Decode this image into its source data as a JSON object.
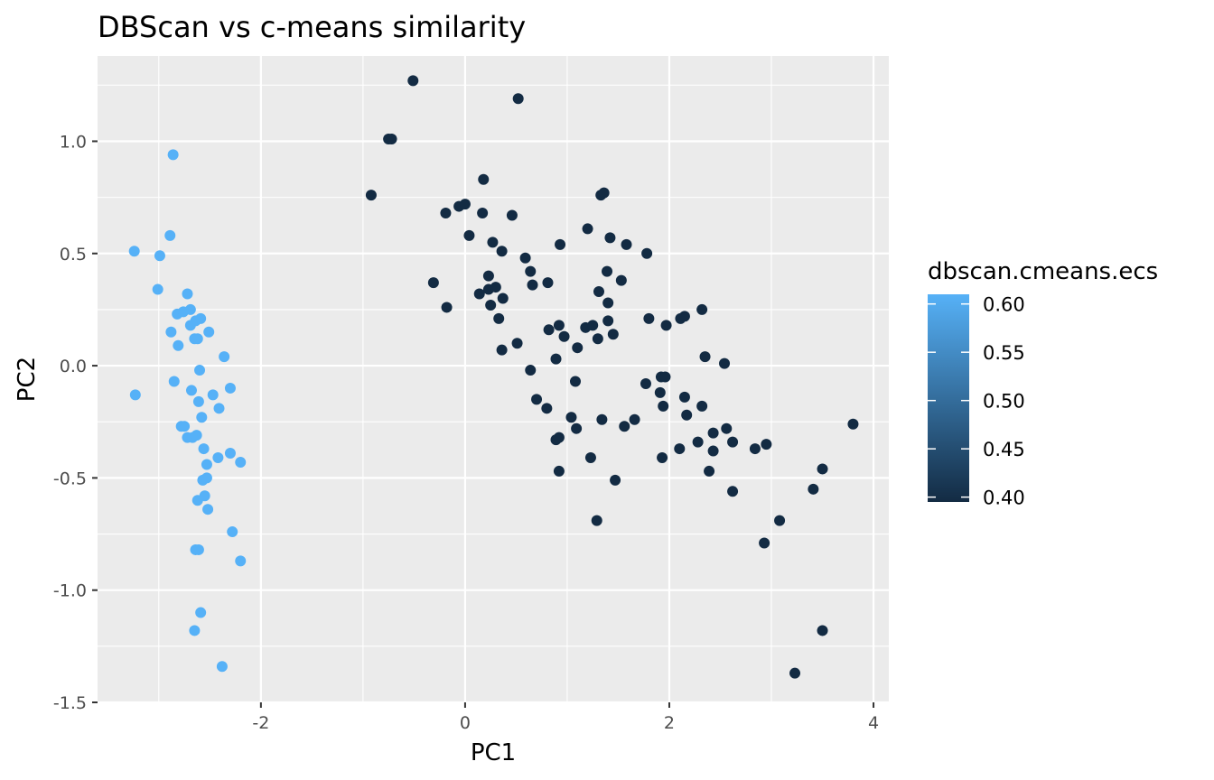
{
  "chart_data": {
    "type": "scatter",
    "title": "DBScan vs c-means similarity",
    "xlabel": "PC1",
    "ylabel": "PC2",
    "xlim": [
      -3.6,
      4.15
    ],
    "ylim": [
      -1.5,
      1.38
    ],
    "xticks": [
      -2,
      0,
      2,
      4
    ],
    "xtick_labels": [
      "-2",
      "0",
      "2",
      "4"
    ],
    "yticks": [
      -1.5,
      -1.0,
      -0.5,
      0.0,
      0.5,
      1.0
    ],
    "ytick_labels": [
      "-1.5",
      "-1.0",
      "-0.5",
      "0.0",
      "0.5",
      "1.0"
    ],
    "grid": true,
    "legend": {
      "title": "dbscan.cmeans.ecs",
      "position": "right",
      "type": "colorbar",
      "range": [
        0.395,
        0.61
      ],
      "ticks": [
        0.4,
        0.45,
        0.5,
        0.55,
        0.6
      ],
      "tick_labels": [
        "0.40",
        "0.45",
        "0.50",
        "0.55",
        "0.60"
      ],
      "color_low": "#132B43",
      "color_high": "#56B1F7"
    },
    "series": [
      {
        "value": 0.6,
        "color": "#56B1F7",
        "points": [
          [
            -3.24,
            0.51
          ],
          [
            -3.23,
            -0.13
          ],
          [
            -2.99,
            0.49
          ],
          [
            -3.01,
            0.34
          ],
          [
            -2.86,
            0.94
          ],
          [
            -2.89,
            0.58
          ],
          [
            -2.85,
            -0.07
          ],
          [
            -2.88,
            0.15
          ],
          [
            -2.82,
            0.23
          ],
          [
            -2.76,
            0.24
          ],
          [
            -2.72,
            0.32
          ],
          [
            -2.69,
            0.25
          ],
          [
            -2.69,
            0.18
          ],
          [
            -2.81,
            0.09
          ],
          [
            -2.65,
            0.12
          ],
          [
            -2.62,
            0.12
          ],
          [
            -2.64,
            0.2
          ],
          [
            -2.59,
            0.21
          ],
          [
            -2.51,
            0.15
          ],
          [
            -2.36,
            0.04
          ],
          [
            -2.6,
            -0.02
          ],
          [
            -2.68,
            -0.11
          ],
          [
            -2.61,
            -0.16
          ],
          [
            -2.47,
            -0.13
          ],
          [
            -2.3,
            -0.1
          ],
          [
            -2.41,
            -0.19
          ],
          [
            -2.58,
            -0.23
          ],
          [
            -2.78,
            -0.27
          ],
          [
            -2.75,
            -0.27
          ],
          [
            -2.72,
            -0.32
          ],
          [
            -2.67,
            -0.32
          ],
          [
            -2.63,
            -0.31
          ],
          [
            -2.56,
            -0.37
          ],
          [
            -2.42,
            -0.41
          ],
          [
            -2.3,
            -0.39
          ],
          [
            -2.2,
            -0.43
          ],
          [
            -2.53,
            -0.44
          ],
          [
            -2.57,
            -0.51
          ],
          [
            -2.53,
            -0.5
          ],
          [
            -2.55,
            -0.58
          ],
          [
            -2.62,
            -0.6
          ],
          [
            -2.52,
            -0.64
          ],
          [
            -2.28,
            -0.74
          ],
          [
            -2.2,
            -0.87
          ],
          [
            -2.64,
            -0.82
          ],
          [
            -2.61,
            -0.82
          ],
          [
            -2.59,
            -1.1
          ],
          [
            -2.65,
            -1.18
          ],
          [
            -2.38,
            -1.34
          ]
        ]
      },
      {
        "value": 0.4,
        "color": "#132B43",
        "points": [
          [
            -0.51,
            1.27
          ],
          [
            0.52,
            1.19
          ],
          [
            -0.75,
            1.01
          ],
          [
            -0.72,
            1.01
          ],
          [
            -0.92,
            0.76
          ],
          [
            0.18,
            0.83
          ],
          [
            1.33,
            0.76
          ],
          [
            1.36,
            0.77
          ],
          [
            -0.19,
            0.68
          ],
          [
            -0.06,
            0.71
          ],
          [
            0.0,
            0.72
          ],
          [
            0.17,
            0.68
          ],
          [
            0.46,
            0.67
          ],
          [
            1.2,
            0.61
          ],
          [
            0.04,
            0.58
          ],
          [
            0.27,
            0.55
          ],
          [
            0.93,
            0.54
          ],
          [
            1.42,
            0.57
          ],
          [
            1.58,
            0.54
          ],
          [
            1.78,
            0.5
          ],
          [
            0.36,
            0.51
          ],
          [
            0.59,
            0.48
          ],
          [
            0.64,
            0.42
          ],
          [
            1.39,
            0.42
          ],
          [
            1.53,
            0.38
          ],
          [
            -0.31,
            0.37
          ],
          [
            0.23,
            0.4
          ],
          [
            0.66,
            0.36
          ],
          [
            0.81,
            0.37
          ],
          [
            0.14,
            0.32
          ],
          [
            0.23,
            0.34
          ],
          [
            0.3,
            0.35
          ],
          [
            0.37,
            0.3
          ],
          [
            1.31,
            0.33
          ],
          [
            1.4,
            0.28
          ],
          [
            -0.18,
            0.26
          ],
          [
            0.25,
            0.27
          ],
          [
            0.33,
            0.21
          ],
          [
            1.8,
            0.21
          ],
          [
            2.11,
            0.21
          ],
          [
            2.15,
            0.22
          ],
          [
            2.32,
            0.25
          ],
          [
            1.4,
            0.2
          ],
          [
            1.18,
            0.17
          ],
          [
            1.25,
            0.18
          ],
          [
            0.82,
            0.16
          ],
          [
            0.92,
            0.18
          ],
          [
            1.97,
            0.18
          ],
          [
            0.97,
            0.13
          ],
          [
            1.3,
            0.12
          ],
          [
            1.45,
            0.14
          ],
          [
            0.51,
            0.1
          ],
          [
            0.36,
            0.07
          ],
          [
            1.1,
            0.08
          ],
          [
            2.35,
            0.04
          ],
          [
            2.54,
            0.01
          ],
          [
            0.64,
            -0.02
          ],
          [
            0.89,
            0.03
          ],
          [
            1.08,
            -0.07
          ],
          [
            1.92,
            -0.05
          ],
          [
            1.96,
            -0.05
          ],
          [
            1.77,
            -0.08
          ],
          [
            1.91,
            -0.12
          ],
          [
            2.15,
            -0.14
          ],
          [
            0.7,
            -0.15
          ],
          [
            0.8,
            -0.19
          ],
          [
            1.94,
            -0.18
          ],
          [
            2.32,
            -0.18
          ],
          [
            2.17,
            -0.22
          ],
          [
            1.04,
            -0.23
          ],
          [
            1.34,
            -0.24
          ],
          [
            1.66,
            -0.24
          ],
          [
            1.56,
            -0.27
          ],
          [
            2.56,
            -0.28
          ],
          [
            1.09,
            -0.28
          ],
          [
            2.43,
            -0.3
          ],
          [
            2.62,
            -0.34
          ],
          [
            2.28,
            -0.34
          ],
          [
            2.95,
            -0.35
          ],
          [
            2.84,
            -0.37
          ],
          [
            0.89,
            -0.33
          ],
          [
            0.92,
            -0.32
          ],
          [
            2.1,
            -0.37
          ],
          [
            2.43,
            -0.38
          ],
          [
            1.23,
            -0.41
          ],
          [
            1.93,
            -0.41
          ],
          [
            0.92,
            -0.47
          ],
          [
            2.39,
            -0.47
          ],
          [
            1.47,
            -0.51
          ],
          [
            3.5,
            -0.46
          ],
          [
            3.8,
            -0.26
          ],
          [
            3.41,
            -0.55
          ],
          [
            2.62,
            -0.56
          ],
          [
            1.29,
            -0.69
          ],
          [
            3.08,
            -0.69
          ],
          [
            2.93,
            -0.79
          ],
          [
            3.5,
            -1.18
          ],
          [
            3.23,
            -1.37
          ]
        ]
      }
    ]
  }
}
